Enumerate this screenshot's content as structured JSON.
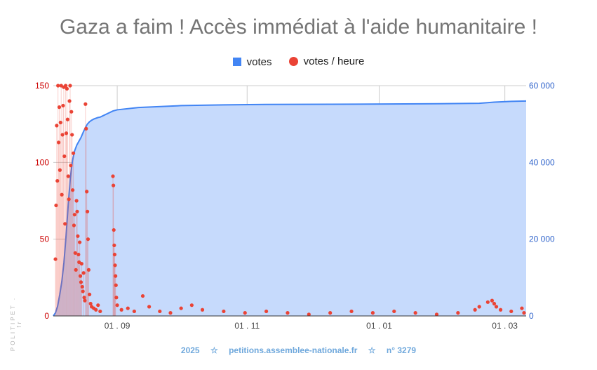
{
  "title": "Gaza a faim ! Accès immédiat à l'aide humanitaire !",
  "legend": {
    "series1": "votes",
    "series2": "votes / heure"
  },
  "footer": {
    "year": "2025",
    "star": "☆",
    "site": "petitions.assemblee-nationale.fr",
    "number": "n° 3279"
  },
  "side_text": "POLITIPET . fr",
  "colors": {
    "votes": "#4285f4",
    "votes_fill": "#c6dafc",
    "per_hour": "#ea4335",
    "left_axis": "#cc0000",
    "right_axis": "#3366cc"
  },
  "chart_data": {
    "type": "area",
    "x_ticks": [
      "01 . 09",
      "01 . 11",
      "01 . 01",
      "01 . 03"
    ],
    "x_tick_days": [
      30,
      91,
      153,
      212
    ],
    "x_range_days": [
      0,
      222
    ],
    "left_axis": {
      "ticks": [
        "0",
        "50",
        "100",
        "150"
      ],
      "range": [
        0,
        150
      ]
    },
    "right_axis": {
      "ticks": [
        "0",
        "20 000",
        "40 000",
        "60 000"
      ],
      "range": [
        0,
        60000
      ]
    },
    "series": [
      {
        "name": "votes",
        "axis": "right",
        "points": [
          [
            0,
            0
          ],
          [
            1,
            800
          ],
          [
            2,
            2500
          ],
          [
            3,
            5500
          ],
          [
            4,
            9000
          ],
          [
            5,
            14000
          ],
          [
            6,
            21000
          ],
          [
            7,
            29000
          ],
          [
            8,
            36000
          ],
          [
            9,
            40500
          ],
          [
            10,
            43000
          ],
          [
            11,
            44500
          ],
          [
            12,
            45500
          ],
          [
            13,
            46500
          ],
          [
            14,
            47800
          ],
          [
            15,
            49000
          ],
          [
            16,
            50000
          ],
          [
            17,
            50600
          ],
          [
            18,
            51000
          ],
          [
            19,
            51300
          ],
          [
            20,
            51500
          ],
          [
            21,
            51700
          ],
          [
            22,
            51800
          ],
          [
            28,
            53400
          ],
          [
            30,
            53700
          ],
          [
            40,
            54300
          ],
          [
            60,
            54800
          ],
          [
            80,
            55000
          ],
          [
            100,
            55100
          ],
          [
            130,
            55150
          ],
          [
            150,
            55200
          ],
          [
            180,
            55300
          ],
          [
            200,
            55400
          ],
          [
            207,
            55700
          ],
          [
            215,
            55900
          ],
          [
            222,
            56000
          ]
        ]
      },
      {
        "name": "votes / heure",
        "axis": "left",
        "type": "scatter",
        "points": [
          [
            1,
            37
          ],
          [
            1.3,
            72
          ],
          [
            1.6,
            124
          ],
          [
            1.9,
            88
          ],
          [
            2.2,
            150
          ],
          [
            2.5,
            113
          ],
          [
            2.8,
            136
          ],
          [
            3.1,
            95
          ],
          [
            3.4,
            126
          ],
          [
            3.7,
            150
          ],
          [
            4,
            79
          ],
          [
            4.3,
            118
          ],
          [
            4.6,
            137
          ],
          [
            4.9,
            149
          ],
          [
            5.2,
            104
          ],
          [
            5.5,
            60
          ],
          [
            5.8,
            150
          ],
          [
            6.1,
            119
          ],
          [
            6.4,
            148
          ],
          [
            6.7,
            128
          ],
          [
            7,
            91
          ],
          [
            7.3,
            76
          ],
          [
            7.6,
            140
          ],
          [
            7.9,
            150
          ],
          [
            8.2,
            98
          ],
          [
            8.5,
            133
          ],
          [
            8.8,
            118
          ],
          [
            9.1,
            82
          ],
          [
            9.4,
            106
          ],
          [
            9.7,
            59
          ],
          [
            10,
            66
          ],
          [
            10.3,
            41
          ],
          [
            10.6,
            30
          ],
          [
            10.9,
            75
          ],
          [
            11.2,
            68
          ],
          [
            11.5,
            52
          ],
          [
            11.8,
            40
          ],
          [
            12.1,
            35
          ],
          [
            12.4,
            48
          ],
          [
            12.7,
            26
          ],
          [
            13,
            22
          ],
          [
            13.3,
            34
          ],
          [
            13.6,
            19
          ],
          [
            13.9,
            16
          ],
          [
            14.2,
            28
          ],
          [
            14.5,
            12
          ],
          [
            14.8,
            10
          ],
          [
            15.1,
            138
          ],
          [
            15.4,
            122
          ],
          [
            15.7,
            81
          ],
          [
            16,
            68
          ],
          [
            16.3,
            50
          ],
          [
            16.6,
            30
          ],
          [
            17,
            14
          ],
          [
            17.5,
            8
          ],
          [
            18,
            6
          ],
          [
            19,
            5
          ],
          [
            20,
            4
          ],
          [
            21,
            7
          ],
          [
            22,
            3
          ],
          [
            28,
            91
          ],
          [
            28.2,
            85
          ],
          [
            28.4,
            56
          ],
          [
            28.6,
            46
          ],
          [
            28.8,
            40
          ],
          [
            29,
            33
          ],
          [
            29.2,
            26
          ],
          [
            29.4,
            20
          ],
          [
            29.6,
            12
          ],
          [
            30,
            7
          ],
          [
            32,
            4
          ],
          [
            35,
            5
          ],
          [
            38,
            3
          ],
          [
            42,
            13
          ],
          [
            45,
            6
          ],
          [
            50,
            3
          ],
          [
            55,
            2
          ],
          [
            60,
            5
          ],
          [
            65,
            7
          ],
          [
            70,
            4
          ],
          [
            80,
            3
          ],
          [
            90,
            2
          ],
          [
            100,
            3
          ],
          [
            110,
            2
          ],
          [
            120,
            1
          ],
          [
            130,
            2
          ],
          [
            140,
            3
          ],
          [
            150,
            2
          ],
          [
            160,
            3
          ],
          [
            170,
            2
          ],
          [
            180,
            1
          ],
          [
            190,
            2
          ],
          [
            198,
            4
          ],
          [
            200,
            6
          ],
          [
            204,
            9
          ],
          [
            206,
            10
          ],
          [
            207,
            8
          ],
          [
            208,
            6
          ],
          [
            210,
            4
          ],
          [
            215,
            3
          ],
          [
            220,
            5
          ],
          [
            221,
            2
          ]
        ]
      }
    ],
    "grid": true
  }
}
